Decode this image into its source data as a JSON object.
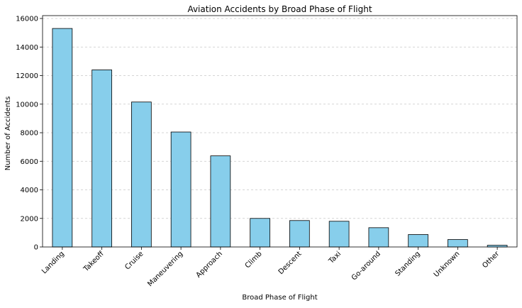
{
  "chart_data": {
    "type": "bar",
    "title": "Aviation Accidents by Broad Phase of Flight",
    "xlabel": "Broad Phase of Flight",
    "ylabel": "Number of Accidents",
    "categories": [
      "Landing",
      "Takeoff",
      "Cruise",
      "Maneuvering",
      "Approach",
      "Climb",
      "Descent",
      "Taxi",
      "Go-around",
      "Standing",
      "Unknown",
      "Other"
    ],
    "values": [
      15300,
      12400,
      10150,
      8050,
      6380,
      2000,
      1850,
      1800,
      1350,
      870,
      520,
      120
    ],
    "ylim": [
      0,
      16200
    ],
    "yticks": [
      0,
      2000,
      4000,
      6000,
      8000,
      10000,
      12000,
      14000,
      16000
    ],
    "grid": "y-dashed",
    "bar_color": "#87ceeb",
    "edge_color": "#000000",
    "grid_color": "#c8c8c8"
  }
}
